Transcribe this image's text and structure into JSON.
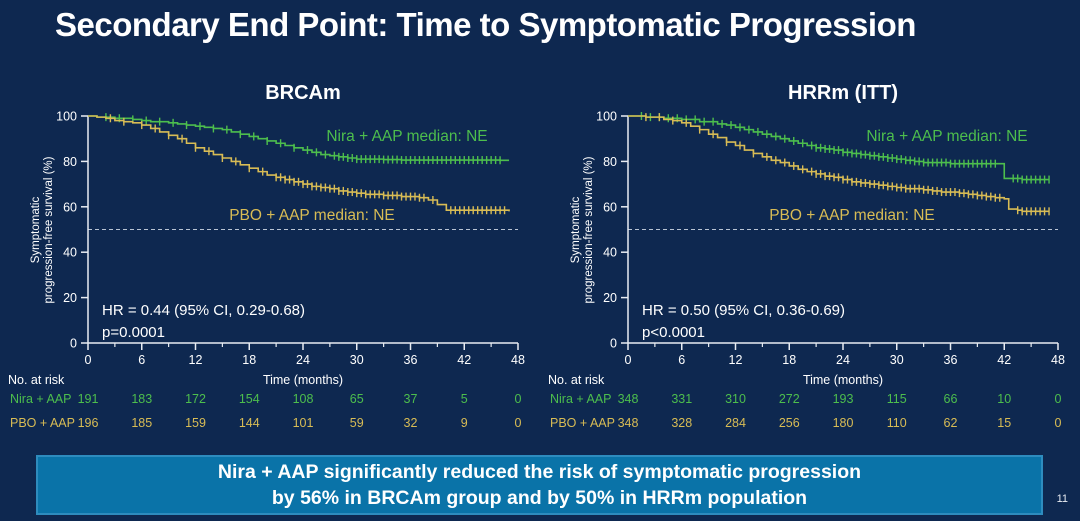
{
  "title": "Secondary End Point: Time to Symptomatic Progression",
  "page_number": "11",
  "banner": {
    "line1": "Nira + AAP significantly reduced the risk of symptomatic progression",
    "line2": "by 56% in BRCAm group and by 50% in HRRm population"
  },
  "colors": {
    "background": "#0e2850",
    "nira_green": "#4dbe4d",
    "pbo_yellow": "#d8bc55",
    "axis": "#e8ecf2",
    "banner_fill": "#0a73a8",
    "banner_border": "#2e8cbe",
    "text": "#ffffff"
  },
  "chart_data": [
    {
      "type": "line",
      "subtype": "kaplan-meier-step",
      "title": "BRCAm",
      "ylabel_lines": [
        "Symptomatic",
        "progression-free survival (%)"
      ],
      "xlabel": "Time (months)",
      "xlim": [
        0,
        48
      ],
      "ylim": [
        0,
        100
      ],
      "xticks": [
        0,
        6,
        12,
        18,
        24,
        30,
        36,
        42,
        48
      ],
      "yticks": [
        0,
        20,
        40,
        60,
        80,
        100
      ],
      "minor_xtick_interval": 3,
      "reference_line_y": 50,
      "grid": false,
      "hr_text": "HR = 0.44 (95% CI, 0.29-0.68)",
      "p_text": "p=0.0001",
      "series": [
        {
          "name": "Nira + AAP",
          "label": "Nira + AAP median: NE",
          "color": "#4dbe4d",
          "points": [
            [
              0,
              100
            ],
            [
              1,
              99.5
            ],
            [
              3,
              99
            ],
            [
              5,
              98.5
            ],
            [
              6,
              98
            ],
            [
              7,
              97.5
            ],
            [
              9,
              97
            ],
            [
              10,
              96.5
            ],
            [
              11,
              96
            ],
            [
              12,
              95.5
            ],
            [
              13,
              95
            ],
            [
              14,
              94.5
            ],
            [
              15,
              94
            ],
            [
              16,
              93
            ],
            [
              17,
              92
            ],
            [
              18,
              91
            ],
            [
              19,
              90
            ],
            [
              20,
              89
            ],
            [
              21,
              88
            ],
            [
              22,
              87
            ],
            [
              23,
              86
            ],
            [
              24,
              85
            ],
            [
              25,
              84
            ],
            [
              26,
              83
            ],
            [
              27,
              82.5
            ],
            [
              28,
              82
            ],
            [
              29,
              81.5
            ],
            [
              30,
              81
            ],
            [
              33,
              80.8
            ],
            [
              35,
              80.6
            ],
            [
              46,
              80.5
            ]
          ],
          "censors": [
            2,
            3.5,
            5,
            6.5,
            8,
            9.5,
            11,
            12.5,
            14,
            15.5,
            17,
            18.5,
            20,
            21.5,
            23,
            24.5,
            25.5,
            26.5,
            27.5,
            28,
            28.5,
            29,
            29.5,
            30,
            30.5,
            31,
            31.5,
            32,
            32.5,
            33,
            33.5,
            34,
            34.5,
            35,
            35.5,
            36,
            36.5,
            37,
            37.5,
            38,
            38.5,
            39,
            39.5,
            40,
            40.5,
            41,
            41.5,
            42,
            42.5,
            43,
            43.5,
            44,
            44.5,
            45,
            45.5,
            46
          ]
        },
        {
          "name": "PBO + AAP",
          "label": "PBO + AAP median: NE",
          "color": "#d8bc55",
          "points": [
            [
              0,
              100
            ],
            [
              1,
              99.5
            ],
            [
              2,
              99
            ],
            [
              3,
              98
            ],
            [
              4,
              97.5
            ],
            [
              5,
              97
            ],
            [
              6,
              96
            ],
            [
              7,
              94.5
            ],
            [
              8,
              93
            ],
            [
              9,
              91.5
            ],
            [
              10,
              90
            ],
            [
              11,
              88
            ],
            [
              12,
              86
            ],
            [
              13,
              84.5
            ],
            [
              14,
              83
            ],
            [
              15,
              81.5
            ],
            [
              16,
              80
            ],
            [
              17,
              78.5
            ],
            [
              18,
              77
            ],
            [
              19,
              75.5
            ],
            [
              20,
              74
            ],
            [
              21,
              73
            ],
            [
              22,
              72
            ],
            [
              23,
              71
            ],
            [
              24,
              70
            ],
            [
              25,
              69
            ],
            [
              26,
              68.5
            ],
            [
              27,
              68
            ],
            [
              28,
              67
            ],
            [
              29,
              66.5
            ],
            [
              30,
              66
            ],
            [
              31,
              65.5
            ],
            [
              33,
              65
            ],
            [
              35,
              64.5
            ],
            [
              37,
              64
            ],
            [
              38,
              63
            ],
            [
              39,
              61
            ],
            [
              40,
              58.5
            ],
            [
              47,
              58
            ]
          ],
          "censors": [
            2.5,
            4,
            6,
            7.5,
            9,
            10.5,
            12,
            13.5,
            15,
            16.5,
            18,
            19.5,
            21,
            21.5,
            22,
            22.5,
            23,
            23.5,
            24,
            24.5,
            25,
            25.5,
            26,
            26.5,
            27,
            27.5,
            28,
            28.5,
            29,
            29.5,
            30,
            30.5,
            31,
            31.5,
            32,
            32.5,
            33,
            33.5,
            34,
            34.5,
            35,
            35.5,
            36,
            36.5,
            37,
            37.5,
            38.5,
            40.5,
            41,
            41.5,
            42,
            42.5,
            43,
            43.5,
            44,
            44.5,
            45,
            45.5,
            46,
            46.5
          ]
        }
      ],
      "at_risk": {
        "header": "No. at risk",
        "rows": [
          {
            "name": "Nira + AAP",
            "color": "#4dbe4d",
            "values": [
              191,
              183,
              172,
              154,
              108,
              65,
              37,
              5,
              0
            ]
          },
          {
            "name": "PBO + AAP",
            "color": "#d8bc55",
            "values": [
              196,
              185,
              159,
              144,
              101,
              59,
              32,
              9,
              0
            ]
          }
        ]
      }
    },
    {
      "type": "line",
      "subtype": "kaplan-meier-step",
      "title": "HRRm (ITT)",
      "ylabel_lines": [
        "Symptomatic",
        "progression-free survival (%)"
      ],
      "xlabel": "Time (months)",
      "xlim": [
        0,
        48
      ],
      "ylim": [
        0,
        100
      ],
      "xticks": [
        0,
        6,
        12,
        18,
        24,
        30,
        36,
        42,
        48
      ],
      "yticks": [
        0,
        20,
        40,
        60,
        80,
        100
      ],
      "minor_xtick_interval": 3,
      "reference_line_y": 50,
      "grid": false,
      "hr_text": "HR = 0.50 (95% CI, 0.36-0.69)",
      "p_text": "p<0.0001",
      "series": [
        {
          "name": "Nira + AAP",
          "label": "Nira + AAP median: NE",
          "color": "#4dbe4d",
          "points": [
            [
              0,
              100
            ],
            [
              2,
              99.5
            ],
            [
              4,
              99
            ],
            [
              6,
              98.5
            ],
            [
              8,
              97.5
            ],
            [
              10,
              96.5
            ],
            [
              11,
              96
            ],
            [
              12,
              95
            ],
            [
              13,
              94
            ],
            [
              14,
              93
            ],
            [
              15,
              92
            ],
            [
              16,
              91
            ],
            [
              17,
              90
            ],
            [
              18,
              89
            ],
            [
              19,
              88
            ],
            [
              20,
              87
            ],
            [
              21,
              86
            ],
            [
              22,
              85.5
            ],
            [
              23,
              85
            ],
            [
              24,
              84
            ],
            [
              25,
              83.5
            ],
            [
              26,
              83
            ],
            [
              27,
              82.5
            ],
            [
              28,
              82
            ],
            [
              29,
              81.5
            ],
            [
              30,
              81
            ],
            [
              31,
              80.5
            ],
            [
              32,
              80
            ],
            [
              33,
              79.5
            ],
            [
              36,
              79
            ],
            [
              41.7,
              79
            ],
            [
              42,
              72.5
            ],
            [
              44,
              72
            ],
            [
              47,
              72
            ]
          ],
          "censors": [
            1.5,
            2.5,
            3.5,
            4.5,
            5.5,
            6.5,
            7.5,
            8.5,
            9.5,
            10.5,
            11.5,
            12.5,
            13.5,
            14.5,
            15.5,
            16.5,
            17.5,
            18.5,
            19.5,
            20.5,
            21,
            21.5,
            22,
            22.5,
            23,
            23.5,
            24,
            24.5,
            25,
            25.5,
            26,
            26.5,
            27,
            27.5,
            28,
            28.5,
            29,
            29.5,
            30,
            30.5,
            31,
            31.5,
            32,
            32.5,
            33,
            33.5,
            34,
            34.5,
            35,
            35.5,
            36,
            36.5,
            37,
            37.5,
            38,
            38.5,
            39,
            39.5,
            40,
            40.5,
            41,
            43,
            43.5,
            44,
            44.5,
            45,
            45.5,
            46,
            46.5,
            47
          ]
        },
        {
          "name": "PBO + AAP",
          "label": "PBO + AAP median: NE",
          "color": "#d8bc55",
          "points": [
            [
              0,
              100
            ],
            [
              2,
              99.5
            ],
            [
              4,
              98.5
            ],
            [
              5,
              98
            ],
            [
              6,
              97
            ],
            [
              7,
              95.5
            ],
            [
              8,
              94
            ],
            [
              9,
              92
            ],
            [
              10,
              90.5
            ],
            [
              11,
              88.5
            ],
            [
              12,
              87
            ],
            [
              13,
              85
            ],
            [
              14,
              83.5
            ],
            [
              15,
              82
            ],
            [
              16,
              80.5
            ],
            [
              17,
              79.5
            ],
            [
              18,
              78
            ],
            [
              19,
              76.5
            ],
            [
              20,
              75.5
            ],
            [
              21,
              74.5
            ],
            [
              22,
              73.5
            ],
            [
              23,
              73
            ],
            [
              24,
              72
            ],
            [
              25,
              71
            ],
            [
              26,
              70.5
            ],
            [
              27,
              70
            ],
            [
              28,
              69.5
            ],
            [
              29,
              69
            ],
            [
              30,
              68.5
            ],
            [
              31,
              68
            ],
            [
              33,
              67.5
            ],
            [
              34,
              67
            ],
            [
              35,
              66.5
            ],
            [
              37,
              66
            ],
            [
              38,
              65.5
            ],
            [
              39,
              65
            ],
            [
              40,
              64.5
            ],
            [
              41,
              64
            ],
            [
              42,
              63.5
            ],
            [
              42.5,
              59
            ],
            [
              43.5,
              58.5
            ],
            [
              44,
              58
            ],
            [
              47,
              58
            ]
          ],
          "censors": [
            2,
            3.5,
            5,
            6.5,
            8,
            9.5,
            11,
            12.5,
            14,
            15.5,
            16.5,
            17.5,
            18.5,
            19.5,
            20.5,
            21,
            21.5,
            22,
            22.5,
            23,
            23.5,
            24,
            24.5,
            25,
            25.5,
            26,
            26.5,
            27,
            27.5,
            28,
            28.5,
            29,
            29.5,
            30,
            30.5,
            31,
            31.5,
            32,
            32.5,
            33,
            33.5,
            34,
            34.5,
            35,
            35.5,
            36,
            36.5,
            37,
            37.5,
            38,
            38.5,
            39,
            39.5,
            40,
            40.5,
            41,
            41.5,
            43.5,
            44,
            44.5,
            45,
            45.5,
            46,
            46.5,
            47
          ]
        }
      ],
      "at_risk": {
        "header": "No. at risk",
        "rows": [
          {
            "name": "Nira + AAP",
            "color": "#4dbe4d",
            "values": [
              348,
              331,
              310,
              272,
              193,
              115,
              66,
              10,
              0
            ]
          },
          {
            "name": "PBO + AAP",
            "color": "#d8bc55",
            "values": [
              348,
              328,
              284,
              256,
              180,
              110,
              62,
              15,
              0
            ]
          }
        ]
      }
    }
  ]
}
